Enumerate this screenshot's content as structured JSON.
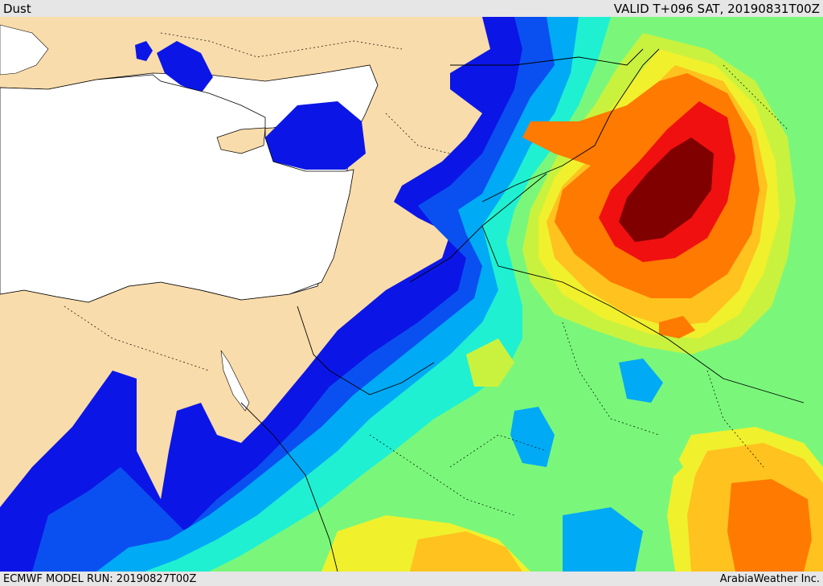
{
  "header": {
    "product": "Dust",
    "valid": "VALID T+096 SAT, 20190831T00Z"
  },
  "footer": {
    "model_run": "ECMWF MODEL RUN: 20190827T00Z",
    "credit": "ArabiaWeather Inc."
  },
  "palette": {
    "land": "#f9dcab",
    "sea": "#ffffff",
    "dark_blue": "#0b16e6",
    "blue": "#0a50f0",
    "light_blue": "#00aaf5",
    "cyan": "#1ff0d2",
    "teal": "#33e8b3",
    "green": "#7af77a",
    "yellow_green": "#c9f23f",
    "yellow": "#f0f02d",
    "orange_yellow": "#ffc21e",
    "orange": "#ff7a00",
    "red_orange": "#ff3c00",
    "red": "#f01010",
    "dark_red": "#800000"
  }
}
